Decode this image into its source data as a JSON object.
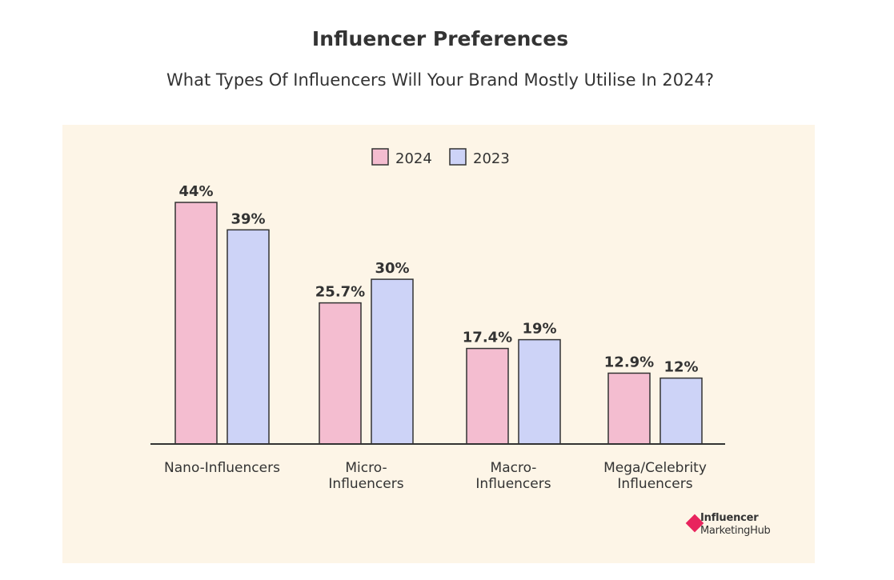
{
  "header": {
    "title": "Influencer Preferences",
    "subtitle": "What Types Of Influencers Will Your Brand Mostly Utilise In 2024?"
  },
  "logo": {
    "line1": "Influencer",
    "line2": "MarketingHub",
    "brand_color": "#e8245d"
  },
  "colors": {
    "panel_bg": "#fdf5e7",
    "series_2024": "#f4bdd0",
    "series_2023": "#cdd3f7",
    "bar_stroke": "#333333"
  },
  "chart_data": {
    "type": "bar",
    "title": "Influencer Preferences",
    "subtitle": "What Types Of Influencers Will Your Brand Mostly Utilise In 2024?",
    "categories": [
      [
        "Nano-Influencers"
      ],
      [
        "Micro-",
        "Influencers"
      ],
      [
        "Macro-",
        "Influencers"
      ],
      [
        "Mega/Celebrity",
        "Influencers"
      ]
    ],
    "series": [
      {
        "name": "2024",
        "color": "#f4bdd0",
        "values": [
          44,
          25.7,
          17.4,
          12.9
        ],
        "labels": [
          "44%",
          "25.7%",
          "17.4%",
          "12.9%"
        ]
      },
      {
        "name": "2023",
        "color": "#cdd3f7",
        "values": [
          39,
          30,
          19,
          12
        ],
        "labels": [
          "39%",
          "30%",
          "19%",
          "12%"
        ]
      }
    ],
    "ylim": [
      0,
      50
    ],
    "legend_position": "top-center",
    "grid": false
  }
}
